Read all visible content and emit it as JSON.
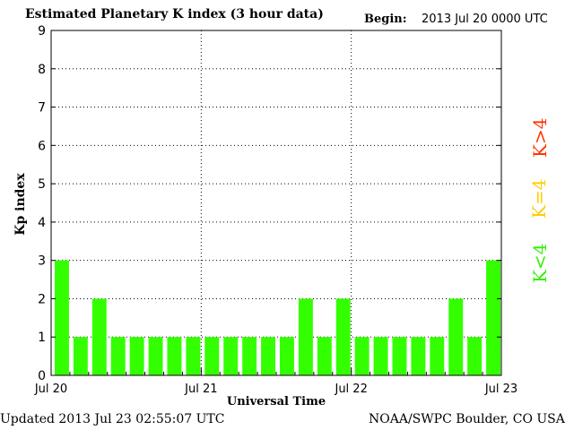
{
  "header": {
    "title": "Estimated Planetary K index (3 hour data)",
    "begin_label": "Begin:",
    "begin_value": "2013 Jul 20 0000 UTC"
  },
  "footer": {
    "updated": "Updated 2013 Jul 23 02:55:07 UTC",
    "source": "NOAA/SWPC Boulder, CO USA"
  },
  "legend": {
    "high": {
      "label": "K>4",
      "color": "#ff3300"
    },
    "equal": {
      "label": "K=4",
      "color": "#ffcc00"
    },
    "low": {
      "label": "K<4",
      "color": "#33ee00"
    }
  },
  "chart_data": {
    "type": "bar",
    "xlabel": "Universal Time",
    "ylabel": "Kp index",
    "ylim": [
      0,
      9
    ],
    "yticks": [
      0,
      1,
      2,
      3,
      4,
      5,
      6,
      7,
      8,
      9
    ],
    "day_labels": [
      "Jul 20",
      "Jul 21",
      "Jul 22",
      "Jul 23"
    ],
    "interval_hours": 3,
    "grid": "dotted",
    "values": [
      3,
      1,
      2,
      1,
      1,
      1,
      1,
      1,
      1,
      1,
      1,
      1,
      1,
      2,
      1,
      2,
      1,
      1,
      1,
      1,
      1,
      2,
      1,
      3
    ],
    "bar_color": "#33ff00"
  }
}
